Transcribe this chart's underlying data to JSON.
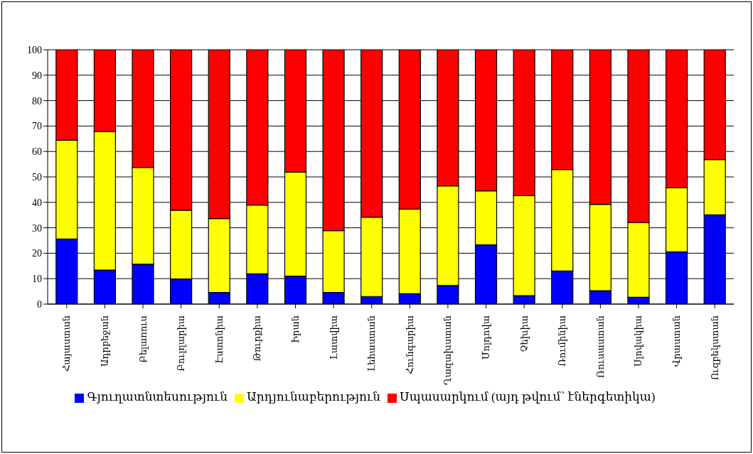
{
  "chart_data": {
    "type": "bar",
    "stacked": true,
    "categories": [
      "Հայաստան",
      "Ադրբեջան",
      "Բելառուս",
      "Բուլղարիա",
      "Էստոնիա",
      "Թուրքիա",
      "Իրան",
      "Լատվիա",
      "Լեհաստան",
      "Հունգարիա",
      "Ղազախստան",
      "Մոլդովա",
      "Չեխիա",
      "Ռումինիա",
      "Ռուսաստան",
      "Սլովակիա",
      "Վրաստան",
      "Ուզբեկստան"
    ],
    "series": [
      {
        "name": "Գյուղատնտեսություն",
        "color": "#0000ff",
        "values": [
          25.6,
          13.4,
          15.7,
          9.9,
          4.6,
          11.9,
          11.0,
          4.6,
          3.0,
          4.1,
          7.3,
          23.3,
          3.3,
          13.0,
          5.3,
          2.7,
          20.6,
          35.1
        ]
      },
      {
        "name": "Արդյունաբերություն",
        "color": "#ffff00",
        "values": [
          38.8,
          54.4,
          38.0,
          27.0,
          29.0,
          27.0,
          40.9,
          24.3,
          31.2,
          33.2,
          39.2,
          21.2,
          39.3,
          39.9,
          33.9,
          29.3,
          25.1,
          21.7
        ]
      },
      {
        "name": "Սպասարկում (այդ թվում՝ էներգետիկա)",
        "color": "#ff0000",
        "values": [
          35.6,
          32.2,
          46.3,
          63.1,
          66.4,
          61.1,
          48.1,
          71.1,
          65.8,
          62.7,
          53.5,
          55.5,
          57.4,
          47.1,
          60.8,
          68.0,
          54.3,
          43.2
        ]
      }
    ],
    "ylim": [
      0,
      100
    ],
    "yticks": [
      0,
      10,
      20,
      30,
      40,
      50,
      60,
      70,
      80,
      90,
      100
    ],
    "grid": "y",
    "legend": "bottom"
  }
}
